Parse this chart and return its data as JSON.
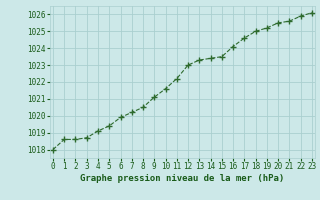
{
  "x": [
    0,
    1,
    2,
    3,
    4,
    5,
    6,
    7,
    8,
    9,
    10,
    11,
    12,
    13,
    14,
    15,
    16,
    17,
    18,
    19,
    20,
    21,
    22,
    23
  ],
  "y": [
    1018.0,
    1018.6,
    1018.6,
    1018.7,
    1019.1,
    1019.4,
    1019.9,
    1020.2,
    1020.5,
    1021.1,
    1021.6,
    1022.2,
    1023.0,
    1023.3,
    1023.4,
    1023.5,
    1024.1,
    1024.6,
    1025.0,
    1025.2,
    1025.5,
    1025.6,
    1025.9,
    1026.1
  ],
  "line_color": "#2d6a2d",
  "marker": "+",
  "marker_size": 4,
  "bg_color": "#cce8e8",
  "grid_color": "#aacfcf",
  "xlabel": "Graphe pression niveau de la mer (hPa)",
  "xlabel_color": "#1a5c1a",
  "tick_color": "#1a5c1a",
  "ylim": [
    1017.5,
    1026.5
  ],
  "yticks": [
    1018,
    1019,
    1020,
    1021,
    1022,
    1023,
    1024,
    1025,
    1026
  ],
  "xticks": [
    0,
    1,
    2,
    3,
    4,
    5,
    6,
    7,
    8,
    9,
    10,
    11,
    12,
    13,
    14,
    15,
    16,
    17,
    18,
    19,
    20,
    21,
    22,
    23
  ],
  "xlim": [
    -0.3,
    23.3
  ],
  "tick_fontsize": 5.5,
  "xlabel_fontsize": 6.5
}
